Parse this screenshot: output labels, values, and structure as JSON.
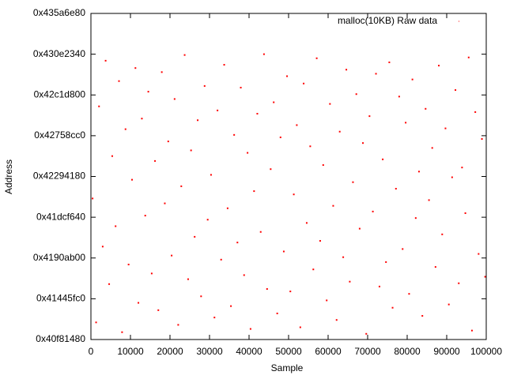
{
  "chart_data": {
    "type": "scatter",
    "x_label": "Sample",
    "y_label": "Address",
    "xlim": [
      0,
      100000
    ],
    "xticks": [
      0,
      10000,
      20000,
      30000,
      40000,
      50000,
      60000,
      70000,
      80000,
      90000,
      100000
    ],
    "ylim": [
      1090000000,
      1130000000
    ],
    "yticks": [
      {
        "value": 1090000000,
        "label": "0x40f81480"
      },
      {
        "value": 1095000000,
        "label": "0x41445fc0"
      },
      {
        "value": 1100000000,
        "label": "0x4190ab00"
      },
      {
        "value": 1105000000,
        "label": "0x41dcf640"
      },
      {
        "value": 1110000000,
        "label": "0x42294180"
      },
      {
        "value": 1115000000,
        "label": "0x42758cc0"
      },
      {
        "value": 1120000000,
        "label": "0x42c1d800"
      },
      {
        "value": 1125000000,
        "label": "0x430e2340"
      },
      {
        "value": 1130000000,
        "label": "0x435a6e80"
      }
    ],
    "grid": false,
    "legend": "top-right",
    "series": [
      {
        "name": "malloc(10KB) Raw data",
        "color": "#ff0000",
        "x": [
          420,
          1310,
          2050,
          2980,
          3720,
          4610,
          5390,
          6240,
          7100,
          7880,
          8750,
          9530,
          10400,
          11260,
          12010,
          12890,
          13740,
          14520,
          15380,
          16210,
          17050,
          17930,
          18690,
          19560,
          20420,
          21170,
          22080,
          22860,
          23710,
          24590,
          25330,
          26240,
          27010,
          27870,
          28760,
          29540,
          30390,
          31250,
          32020,
          32940,
          33710,
          34580,
          35420,
          36230,
          37060,
          37910,
          38750,
          39620,
          40380,
          41270,
          42090,
          42950,
          43780,
          44560,
          45470,
          46240,
          47130,
          47960,
          48790,
          49610,
          50450,
          51320,
          52080,
          52970,
          53810,
          54590,
          55480,
          56260,
          57120,
          57990,
          58760,
          59640,
          60470,
          61290,
          62150,
          62940,
          63820,
          64610,
          65480,
          66290,
          67140,
          67980,
          68810,
          69650,
          70470,
          71320,
          72110,
          72990,
          73820,
          74640,
          75480,
          76310,
          77160,
          77980,
          78850,
          79620,
          80490,
          81330,
          82170,
          82990,
          83840,
          84660,
          85520,
          86340,
          87170,
          88010,
          88860,
          89690,
          90540,
          91370,
          92210,
          93050,
          93880,
          94720,
          95560,
          96390,
          97230,
          98070,
          98910,
          99720
        ],
        "values": [
          1107300000,
          1092100000,
          1118600000,
          1101400000,
          1124200000,
          1096800000,
          1112500000,
          1103900000,
          1121700000,
          1090900000,
          1115800000,
          1099200000,
          1109600000,
          1123300000,
          1094500000,
          1117100000,
          1105200000,
          1120400000,
          1098100000,
          1111900000,
          1093600000,
          1122800000,
          1106700000,
          1114300000,
          1100300000,
          1119500000,
          1091800000,
          1108800000,
          1124900000,
          1097400000,
          1113200000,
          1102600000,
          1116900000,
          1095300000,
          1121100000,
          1104700000,
          1110200000,
          1092700000,
          1118100000,
          1099800000,
          1123700000,
          1106100000,
          1094100000,
          1115100000,
          1101900000,
          1120900000,
          1097900000,
          1112900000,
          1091300000,
          1108200000,
          1117700000,
          1103200000,
          1125000000,
          1096200000,
          1110900000,
          1119100000,
          1093200000,
          1114800000,
          1100800000,
          1122300000,
          1095900000,
          1107800000,
          1116300000,
          1091500000,
          1121400000,
          1104300000,
          1113700000,
          1098600000,
          1124500000,
          1102100000,
          1111400000,
          1094800000,
          1118900000,
          1106400000,
          1092400000,
          1115500000,
          1100100000,
          1123100000,
          1097100000,
          1109300000,
          1120100000,
          1103600000,
          1114100000,
          1090700000,
          1117400000,
          1105700000,
          1122600000,
          1096500000,
          1112100000,
          1099500000,
          1124000000,
          1093900000,
          1108500000,
          1119800000,
          1101100000,
          1116600000,
          1095600000,
          1121900000,
          1104900000,
          1110600000,
          1092900000,
          1118300000,
          1107100000,
          1113500000,
          1098900000,
          1123600000,
          1102900000,
          1115900000,
          1094300000,
          1109900000,
          1120600000,
          1096900000,
          1111100000,
          1105500000,
          1124600000,
          1091100000,
          1117900000,
          1100500000,
          1114600000,
          1097700000
        ]
      }
    ]
  }
}
